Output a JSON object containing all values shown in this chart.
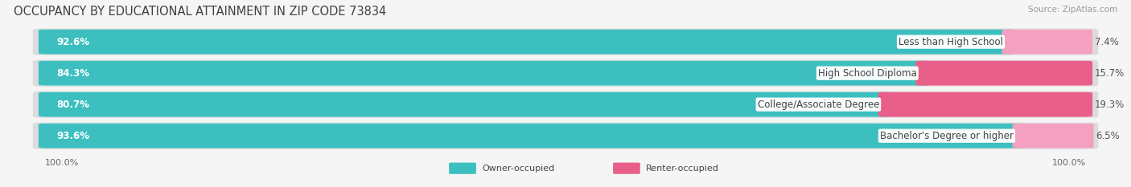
{
  "title": "OCCUPANCY BY EDUCATIONAL ATTAINMENT IN ZIP CODE 73834",
  "source": "Source: ZipAtlas.com",
  "categories": [
    "Less than High School",
    "High School Diploma",
    "College/Associate Degree",
    "Bachelor's Degree or higher"
  ],
  "owner_pct": [
    92.6,
    84.3,
    80.7,
    93.6
  ],
  "renter_pct": [
    7.4,
    15.7,
    19.3,
    6.5
  ],
  "owner_color": "#3dbfbf",
  "renter_color_dark": "#e8608a",
  "renter_color_light": "#f4a0c0",
  "bg_color": "#f5f5f5",
  "bar_bg_color": "#e0e0e0",
  "title_fontsize": 10.5,
  "label_fontsize": 8.5,
  "tick_fontsize": 8,
  "legend_owner": "Owner-occupied",
  "legend_renter": "Renter-occupied"
}
